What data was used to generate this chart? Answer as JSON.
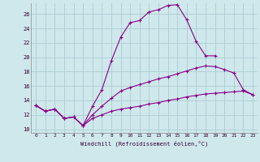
{
  "xlabel": "Windchill (Refroidissement éolien,°C)",
  "x_ticks": [
    0,
    1,
    2,
    3,
    4,
    5,
    6,
    7,
    8,
    9,
    10,
    11,
    12,
    13,
    14,
    15,
    16,
    17,
    18,
    19,
    20,
    21,
    22,
    23
  ],
  "y_ticks": [
    10,
    12,
    14,
    16,
    18,
    20,
    22,
    24,
    26
  ],
  "ylim": [
    9.5,
    27.5
  ],
  "xlim": [
    -0.5,
    23.5
  ],
  "background_color": "#cfe8ec",
  "grid_color": "#aacdd4",
  "line_color": "#880088",
  "line1_x": [
    0,
    1,
    2,
    3,
    4,
    5,
    6,
    7,
    8,
    9,
    10,
    11,
    12,
    13,
    14,
    15,
    16,
    17,
    18,
    19
  ],
  "line1_y": [
    13.3,
    12.5,
    12.8,
    11.5,
    11.7,
    10.5,
    13.2,
    15.5,
    19.5,
    22.8,
    24.8,
    25.1,
    26.3,
    26.6,
    27.2,
    27.3,
    25.2,
    22.2,
    20.2,
    20.2
  ],
  "line2_x": [
    0,
    1,
    2,
    3,
    4,
    5,
    6,
    7,
    8,
    9,
    10,
    11,
    12,
    13,
    14,
    15,
    16,
    17,
    18,
    19,
    20,
    21,
    22,
    23
  ],
  "line2_y": [
    13.3,
    12.5,
    12.8,
    11.5,
    11.7,
    10.5,
    12.0,
    13.2,
    14.3,
    15.3,
    15.8,
    16.2,
    16.6,
    17.0,
    17.3,
    17.7,
    18.1,
    18.5,
    18.8,
    18.7,
    18.3,
    17.8,
    15.5,
    14.8
  ],
  "line3_x": [
    0,
    1,
    2,
    3,
    4,
    5,
    6,
    7,
    8,
    9,
    10,
    11,
    12,
    13,
    14,
    15,
    16,
    17,
    18,
    19,
    20,
    21,
    22,
    23
  ],
  "line3_y": [
    13.3,
    12.5,
    12.8,
    11.5,
    11.7,
    10.5,
    11.5,
    12.0,
    12.5,
    12.8,
    13.0,
    13.2,
    13.5,
    13.7,
    14.0,
    14.2,
    14.5,
    14.7,
    14.9,
    15.0,
    15.1,
    15.2,
    15.3,
    14.8
  ],
  "figsize": [
    3.2,
    2.0
  ],
  "dpi": 100
}
